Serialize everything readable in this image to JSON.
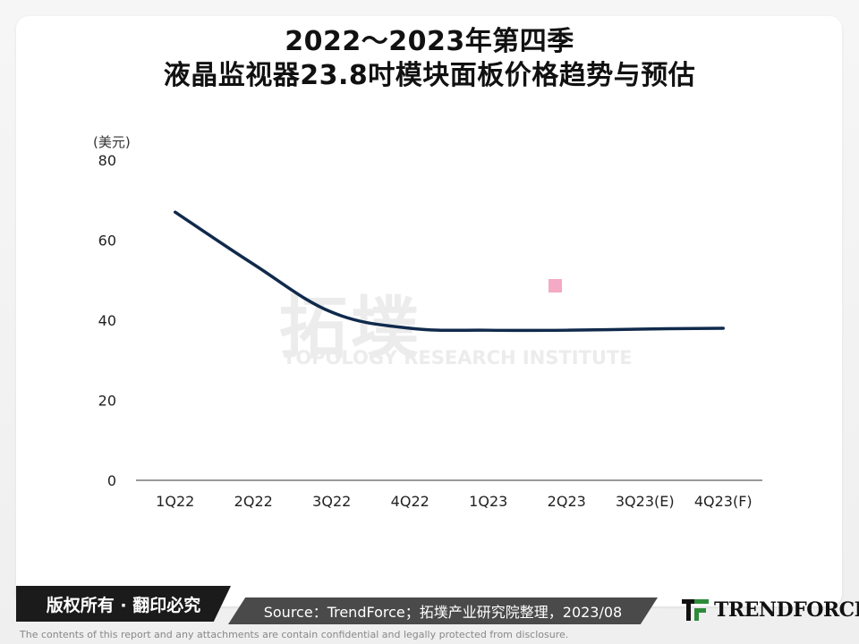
{
  "title": {
    "line1": "2022～2023年第四季",
    "line2": "液晶监视器23.8吋模块面板价格趋势与预估"
  },
  "unit_label": "(美元)",
  "watermark": {
    "cn": "拓墣",
    "en": "TOPOLOGY RESEARCH INSTITUTE"
  },
  "footer": {
    "copyright": "版权所有 · 翻印必究",
    "source": "Source：TrendForce；拓墣产业研究院整理，2023/08",
    "logo": "TRENDFORCE",
    "disclaimer": "The contents of this report and any attachments are contain confidential and legally protected from disclosure."
  },
  "colors": {
    "line": "#102a4c",
    "marker": "#f4a9c4",
    "axis": "#333333",
    "logo_green": "#2e8b3a"
  },
  "chart_data": {
    "type": "line",
    "categories": [
      "1Q22",
      "2Q22",
      "3Q22",
      "4Q22",
      "1Q23",
      "2Q23",
      "3Q23(E)",
      "4Q23(F)"
    ],
    "series": [
      {
        "values": [
          67,
          54,
          42,
          38,
          37.5,
          37.5,
          37.8,
          38
        ]
      }
    ],
    "ylim": [
      0,
      80
    ],
    "yticks": [
      0,
      20,
      40,
      60,
      80
    ],
    "ylabel": "(美元)",
    "xlabel": "",
    "grid": false,
    "smooth": true
  }
}
